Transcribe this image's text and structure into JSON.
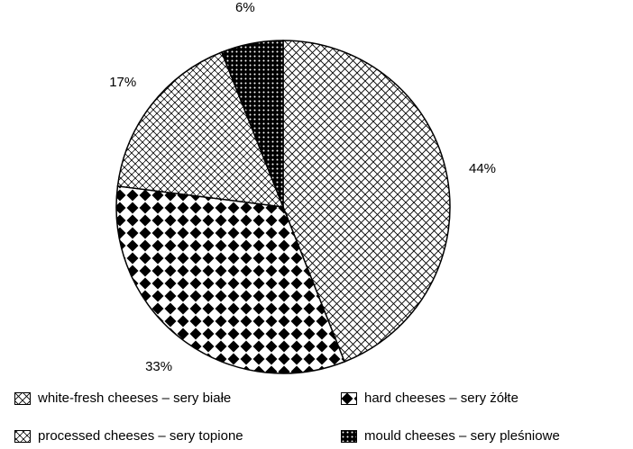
{
  "chart_data": {
    "type": "pie",
    "title": "",
    "slices": [
      {
        "name": "white-fresh cheeses – sery białe",
        "value": 44,
        "label": "44%",
        "pattern": "crosshatch"
      },
      {
        "name": "hard cheeses – sery żółte",
        "value": 33,
        "label": "33%",
        "pattern": "diamond"
      },
      {
        "name": "processed cheeses – sery topione",
        "value": 17,
        "label": "17%",
        "pattern": "weave"
      },
      {
        "name": "mould cheeses – sery pleśniowe",
        "value": 6,
        "label": "6%",
        "pattern": "dots"
      }
    ],
    "legend_position": "bottom",
    "colors": {
      "fill": "#ffffff",
      "ink": "#000000"
    }
  }
}
